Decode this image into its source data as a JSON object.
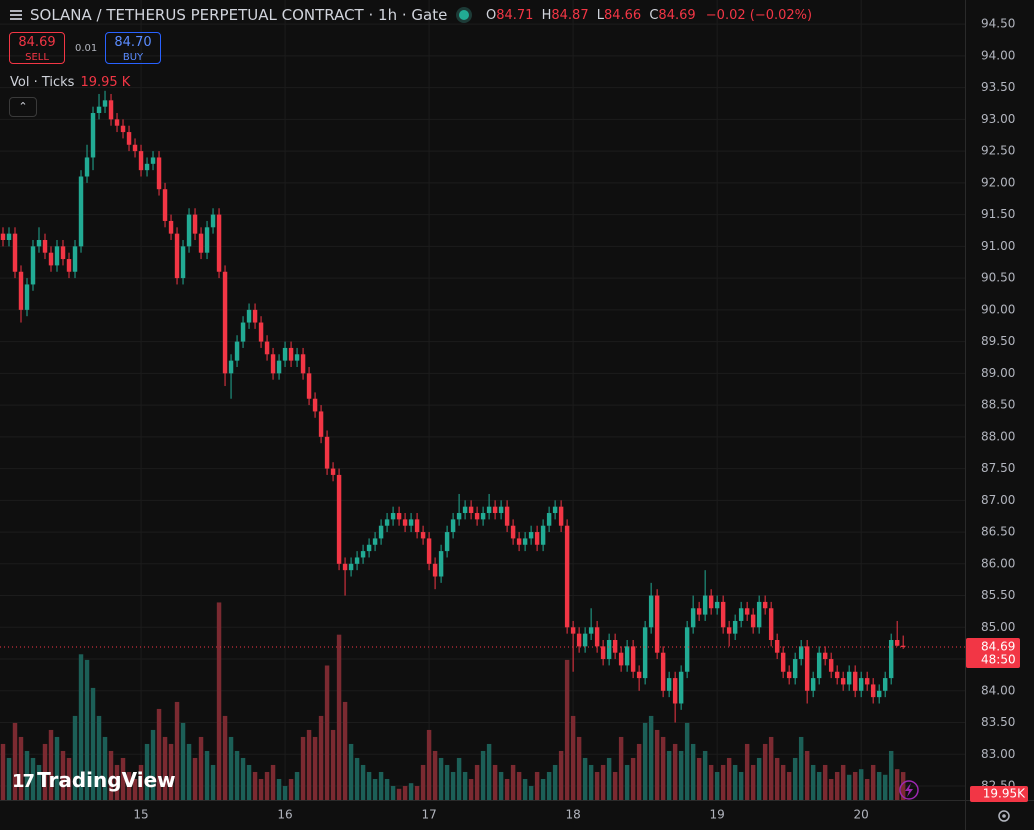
{
  "header": {
    "title": "SOLANA / TETHERUS PERPETUAL CONTRACT · 1h · Gate",
    "ohlc": [
      {
        "key": "O",
        "value": "84.71"
      },
      {
        "key": "H",
        "value": "84.87"
      },
      {
        "key": "L",
        "value": "84.66"
      },
      {
        "key": "C",
        "value": "84.69"
      }
    ],
    "change": "−0.02 (−0.02%)"
  },
  "trade": {
    "sell_price": "84.69",
    "sell_label": "SELL",
    "spread": "0.01",
    "buy_price": "84.70",
    "buy_label": "BUY"
  },
  "volume_legend": {
    "label": "Vol · Ticks",
    "value": "19.95 K"
  },
  "logo": "TradingView",
  "chart_data": {
    "type": "candlestick",
    "up_color": "#22ab94",
    "down_color": "#f23645",
    "volume_up_color": "#1c5f57",
    "volume_down_color": "#7b2a31",
    "grid": true,
    "x": [
      0,
      1,
      2,
      3,
      4,
      5,
      6,
      7,
      8,
      9,
      10,
      11,
      12,
      13,
      14,
      15,
      16,
      17,
      18,
      19,
      20,
      21,
      22,
      23,
      24,
      25,
      26,
      27,
      28,
      29,
      30,
      31,
      32,
      33,
      34,
      35,
      36,
      37,
      38,
      39,
      40,
      41,
      42,
      43,
      44,
      45,
      46,
      47,
      48,
      49,
      50,
      51,
      52,
      53,
      54,
      55,
      56,
      57,
      58,
      59,
      60,
      61,
      62,
      63,
      64,
      65,
      66,
      67,
      68,
      69,
      70,
      71,
      72,
      73,
      74,
      75,
      76,
      77,
      78,
      79,
      80,
      81,
      82,
      83,
      84,
      85,
      86,
      87,
      88,
      89,
      90,
      91,
      92,
      93,
      94,
      95,
      96,
      97,
      98,
      99,
      100,
      101,
      102,
      103,
      104,
      105,
      106,
      107,
      108,
      109,
      110,
      111,
      112,
      113,
      114,
      115,
      116,
      117,
      118,
      119,
      120,
      121,
      122,
      123,
      124,
      125,
      126,
      127,
      128,
      129,
      130,
      131,
      132,
      133,
      134,
      135,
      136,
      137,
      138,
      139,
      140,
      141,
      142,
      143,
      144,
      145,
      146,
      147,
      148,
      149,
      150
    ],
    "candles": [
      [
        91.2,
        91.3,
        91.0,
        91.1
      ],
      [
        91.1,
        91.3,
        91.0,
        91.2
      ],
      [
        91.2,
        91.3,
        90.5,
        90.6
      ],
      [
        90.6,
        90.7,
        89.8,
        90.0
      ],
      [
        90.0,
        90.5,
        89.9,
        90.4
      ],
      [
        90.4,
        91.1,
        90.3,
        91.0
      ],
      [
        91.0,
        91.3,
        90.9,
        91.1
      ],
      [
        91.1,
        91.2,
        90.8,
        90.9
      ],
      [
        90.9,
        91.0,
        90.6,
        90.7
      ],
      [
        90.7,
        91.1,
        90.6,
        91.0
      ],
      [
        91.0,
        91.1,
        90.7,
        90.8
      ],
      [
        90.8,
        90.9,
        90.5,
        90.6
      ],
      [
        90.6,
        91.1,
        90.5,
        91.0
      ],
      [
        91.0,
        92.2,
        90.9,
        92.1
      ],
      [
        92.1,
        92.6,
        92.0,
        92.4
      ],
      [
        92.4,
        93.2,
        92.2,
        93.1
      ],
      [
        93.1,
        93.4,
        93.0,
        93.2
      ],
      [
        93.2,
        93.45,
        93.1,
        93.3
      ],
      [
        93.3,
        93.4,
        92.9,
        93.0
      ],
      [
        93.0,
        93.1,
        92.8,
        92.9
      ],
      [
        92.9,
        93.0,
        92.7,
        92.8
      ],
      [
        92.8,
        92.9,
        92.5,
        92.6
      ],
      [
        92.6,
        92.7,
        92.4,
        92.5
      ],
      [
        92.5,
        92.6,
        92.1,
        92.2
      ],
      [
        92.2,
        92.4,
        92.1,
        92.3
      ],
      [
        92.3,
        92.5,
        92.2,
        92.4
      ],
      [
        92.4,
        92.5,
        91.8,
        91.9
      ],
      [
        91.9,
        92.0,
        91.3,
        91.4
      ],
      [
        91.4,
        91.5,
        91.1,
        91.2
      ],
      [
        91.2,
        91.3,
        90.4,
        90.5
      ],
      [
        90.5,
        91.1,
        90.4,
        91.0
      ],
      [
        91.0,
        91.6,
        90.9,
        91.5
      ],
      [
        91.5,
        91.6,
        91.1,
        91.2
      ],
      [
        91.2,
        91.3,
        90.8,
        90.9
      ],
      [
        90.9,
        91.4,
        90.8,
        91.3
      ],
      [
        91.3,
        91.6,
        91.2,
        91.5
      ],
      [
        91.5,
        91.6,
        90.5,
        90.6
      ],
      [
        90.6,
        90.7,
        88.8,
        89.0
      ],
      [
        89.0,
        89.3,
        88.6,
        89.2
      ],
      [
        89.2,
        89.6,
        89.1,
        89.5
      ],
      [
        89.5,
        89.9,
        89.4,
        89.8
      ],
      [
        89.8,
        90.1,
        89.7,
        90.0
      ],
      [
        90.0,
        90.1,
        89.7,
        89.8
      ],
      [
        89.8,
        89.9,
        89.4,
        89.5
      ],
      [
        89.5,
        89.6,
        89.2,
        89.3
      ],
      [
        89.3,
        89.4,
        88.9,
        89.0
      ],
      [
        89.0,
        89.3,
        88.9,
        89.2
      ],
      [
        89.2,
        89.5,
        89.1,
        89.4
      ],
      [
        89.4,
        89.5,
        89.1,
        89.2
      ],
      [
        89.2,
        89.4,
        89.1,
        89.3
      ],
      [
        89.3,
        89.4,
        88.9,
        89.0
      ],
      [
        89.0,
        89.1,
        88.5,
        88.6
      ],
      [
        88.6,
        88.7,
        88.3,
        88.4
      ],
      [
        88.4,
        88.5,
        87.9,
        88.0
      ],
      [
        88.0,
        88.1,
        87.4,
        87.5
      ],
      [
        87.5,
        87.6,
        87.3,
        87.4
      ],
      [
        87.4,
        87.5,
        85.9,
        86.0
      ],
      [
        86.0,
        86.1,
        85.5,
        85.9
      ],
      [
        85.9,
        86.1,
        85.8,
        86.0
      ],
      [
        86.0,
        86.2,
        85.9,
        86.1
      ],
      [
        86.1,
        86.3,
        86.0,
        86.2
      ],
      [
        86.2,
        86.4,
        86.1,
        86.3
      ],
      [
        86.3,
        86.5,
        86.2,
        86.4
      ],
      [
        86.4,
        86.7,
        86.3,
        86.6
      ],
      [
        86.6,
        86.8,
        86.5,
        86.7
      ],
      [
        86.7,
        86.9,
        86.6,
        86.8
      ],
      [
        86.8,
        86.9,
        86.6,
        86.7
      ],
      [
        86.7,
        86.8,
        86.5,
        86.6
      ],
      [
        86.6,
        86.8,
        86.5,
        86.7
      ],
      [
        86.7,
        86.8,
        86.4,
        86.5
      ],
      [
        86.5,
        86.6,
        86.3,
        86.4
      ],
      [
        86.4,
        86.5,
        85.9,
        86.0
      ],
      [
        86.0,
        86.1,
        85.6,
        85.8
      ],
      [
        85.8,
        86.3,
        85.7,
        86.2
      ],
      [
        86.2,
        86.6,
        86.1,
        86.5
      ],
      [
        86.5,
        86.8,
        86.4,
        86.7
      ],
      [
        86.7,
        87.1,
        86.6,
        86.8
      ],
      [
        86.8,
        87.0,
        86.7,
        86.9
      ],
      [
        86.9,
        87.0,
        86.7,
        86.8
      ],
      [
        86.8,
        86.9,
        86.6,
        86.7
      ],
      [
        86.7,
        86.9,
        86.6,
        86.8
      ],
      [
        86.8,
        87.1,
        86.7,
        86.9
      ],
      [
        86.9,
        87.0,
        86.7,
        86.8
      ],
      [
        86.8,
        87.0,
        86.7,
        86.9
      ],
      [
        86.9,
        87.0,
        86.5,
        86.6
      ],
      [
        86.6,
        86.7,
        86.3,
        86.4
      ],
      [
        86.4,
        86.5,
        86.2,
        86.3
      ],
      [
        86.3,
        86.5,
        86.2,
        86.4
      ],
      [
        86.4,
        86.6,
        86.3,
        86.5
      ],
      [
        86.5,
        86.6,
        86.2,
        86.3
      ],
      [
        86.3,
        86.7,
        86.2,
        86.6
      ],
      [
        86.6,
        86.9,
        86.5,
        86.8
      ],
      [
        86.8,
        87.0,
        86.7,
        86.9
      ],
      [
        86.9,
        87.0,
        86.5,
        86.6
      ],
      [
        86.6,
        86.7,
        84.9,
        85.0
      ],
      [
        85.0,
        85.1,
        84.3,
        84.9
      ],
      [
        84.9,
        85.0,
        84.6,
        84.7
      ],
      [
        84.7,
        85.0,
        84.6,
        84.9
      ],
      [
        84.9,
        85.3,
        84.8,
        85.0
      ],
      [
        85.0,
        85.1,
        84.6,
        84.7
      ],
      [
        84.7,
        84.8,
        84.4,
        84.5
      ],
      [
        84.5,
        84.9,
        84.4,
        84.8
      ],
      [
        84.8,
        84.9,
        84.5,
        84.6
      ],
      [
        84.6,
        84.7,
        84.3,
        84.4
      ],
      [
        84.4,
        84.8,
        84.3,
        84.7
      ],
      [
        84.7,
        84.8,
        84.2,
        84.3
      ],
      [
        84.3,
        84.4,
        84.0,
        84.2
      ],
      [
        84.2,
        85.1,
        84.1,
        85.0
      ],
      [
        85.0,
        85.7,
        84.9,
        85.5
      ],
      [
        85.5,
        85.6,
        84.5,
        84.6
      ],
      [
        84.6,
        84.7,
        83.9,
        84.0
      ],
      [
        84.0,
        84.3,
        83.9,
        84.2
      ],
      [
        84.2,
        84.3,
        83.5,
        83.8
      ],
      [
        83.8,
        84.4,
        83.7,
        84.3
      ],
      [
        84.3,
        85.1,
        84.2,
        85.0
      ],
      [
        85.0,
        85.5,
        84.9,
        85.3
      ],
      [
        85.3,
        85.4,
        85.1,
        85.2
      ],
      [
        85.2,
        85.9,
        85.1,
        85.5
      ],
      [
        85.5,
        85.6,
        85.2,
        85.3
      ],
      [
        85.3,
        85.5,
        85.2,
        85.4
      ],
      [
        85.4,
        85.5,
        84.9,
        85.0
      ],
      [
        85.0,
        85.1,
        84.7,
        84.9
      ],
      [
        84.9,
        85.2,
        84.8,
        85.1
      ],
      [
        85.1,
        85.4,
        85.0,
        85.3
      ],
      [
        85.3,
        85.4,
        85.1,
        85.2
      ],
      [
        85.2,
        85.3,
        84.9,
        85.0
      ],
      [
        85.0,
        85.5,
        84.9,
        85.4
      ],
      [
        85.4,
        85.5,
        85.2,
        85.3
      ],
      [
        85.3,
        85.4,
        84.7,
        84.8
      ],
      [
        84.8,
        84.9,
        84.5,
        84.6
      ],
      [
        84.6,
        84.7,
        84.2,
        84.3
      ],
      [
        84.3,
        84.4,
        84.1,
        84.2
      ],
      [
        84.2,
        84.6,
        84.1,
        84.5
      ],
      [
        84.5,
        84.8,
        84.4,
        84.7
      ],
      [
        84.7,
        84.8,
        83.8,
        84.0
      ],
      [
        84.0,
        84.3,
        83.9,
        84.2
      ],
      [
        84.2,
        84.7,
        84.1,
        84.6
      ],
      [
        84.6,
        84.7,
        84.4,
        84.5
      ],
      [
        84.5,
        84.6,
        84.2,
        84.3
      ],
      [
        84.3,
        84.4,
        84.1,
        84.2
      ],
      [
        84.2,
        84.3,
        84.0,
        84.1
      ],
      [
        84.1,
        84.4,
        84.0,
        84.3
      ],
      [
        84.3,
        84.4,
        83.9,
        84.0
      ],
      [
        84.0,
        84.3,
        83.9,
        84.2
      ],
      [
        84.2,
        84.3,
        84.0,
        84.1
      ],
      [
        84.1,
        84.2,
        83.8,
        83.9
      ],
      [
        83.9,
        84.1,
        83.8,
        84.0
      ],
      [
        84.0,
        84.3,
        83.9,
        84.2
      ],
      [
        84.2,
        84.9,
        84.1,
        84.8
      ],
      [
        84.8,
        85.1,
        84.7,
        84.71
      ],
      [
        84.71,
        84.87,
        84.66,
        84.69
      ]
    ],
    "volumes": [
      40,
      30,
      55,
      45,
      35,
      30,
      25,
      40,
      50,
      45,
      35,
      30,
      60,
      104,
      100,
      80,
      60,
      45,
      35,
      25,
      30,
      20,
      15,
      25,
      40,
      50,
      65,
      45,
      40,
      70,
      55,
      40,
      30,
      45,
      35,
      25,
      141,
      60,
      45,
      35,
      30,
      25,
      20,
      15,
      20,
      25,
      15,
      10,
      15,
      20,
      45,
      50,
      45,
      60,
      96,
      50,
      118,
      70,
      40,
      30,
      25,
      20,
      15,
      20,
      15,
      10,
      8,
      10,
      12,
      10,
      25,
      50,
      35,
      30,
      25,
      20,
      30,
      20,
      15,
      25,
      35,
      40,
      25,
      20,
      15,
      25,
      20,
      15,
      10,
      20,
      15,
      20,
      25,
      35,
      100,
      60,
      45,
      30,
      25,
      20,
      25,
      30,
      20,
      45,
      25,
      30,
      40,
      55,
      60,
      50,
      45,
      35,
      40,
      35,
      55,
      40,
      30,
      35,
      25,
      20,
      25,
      30,
      25,
      20,
      40,
      25,
      30,
      40,
      45,
      30,
      25,
      20,
      30,
      45,
      35,
      25,
      20,
      25,
      15,
      20,
      25,
      18,
      20,
      22,
      15,
      25,
      20,
      18,
      35,
      22,
      19.95
    ],
    "xlim": [
      -0.5,
      160.3
    ],
    "xticks": [
      {
        "value": 23,
        "label": "15"
      },
      {
        "value": 47,
        "label": "16"
      },
      {
        "value": 71,
        "label": "17"
      },
      {
        "value": 95,
        "label": "18"
      },
      {
        "value": 119,
        "label": "19"
      },
      {
        "value": 143,
        "label": "20"
      }
    ],
    "ylim": [
      82.28,
      94.88
    ],
    "yticks": [
      {
        "value": 82.5,
        "label": "82.50"
      },
      {
        "value": 83,
        "label": "83.00"
      },
      {
        "value": 83.5,
        "label": "83.50"
      },
      {
        "value": 84,
        "label": "84.00"
      },
      {
        "value": 84.5,
        "label": "84.50"
      },
      {
        "value": 85,
        "label": "85.00"
      },
      {
        "value": 85.5,
        "label": "85.50"
      },
      {
        "value": 86,
        "label": "86.00"
      },
      {
        "value": 86.5,
        "label": "86.50"
      },
      {
        "value": 87,
        "label": "87.00"
      },
      {
        "value": 87.5,
        "label": "87.50"
      },
      {
        "value": 88,
        "label": "88.00"
      },
      {
        "value": 88.5,
        "label": "88.50"
      },
      {
        "value": 89,
        "label": "89.00"
      },
      {
        "value": 89.5,
        "label": "89.50"
      },
      {
        "value": 90,
        "label": "90.00"
      },
      {
        "value": 90.5,
        "label": "90.50"
      },
      {
        "value": 91,
        "label": "91.00"
      },
      {
        "value": 91.5,
        "label": "91.50"
      },
      {
        "value": 92,
        "label": "92.00"
      },
      {
        "value": 92.5,
        "label": "92.50"
      },
      {
        "value": 93,
        "label": "93.00"
      },
      {
        "value": 93.5,
        "label": "93.50"
      },
      {
        "value": 94,
        "label": "94.00"
      },
      {
        "value": 94.5,
        "label": "94.50"
      }
    ],
    "volume_ylim": [
      0,
      571
    ],
    "last_price_label": "84.69",
    "countdown": "48:50",
    "volume_axis_label": "19.95K"
  }
}
